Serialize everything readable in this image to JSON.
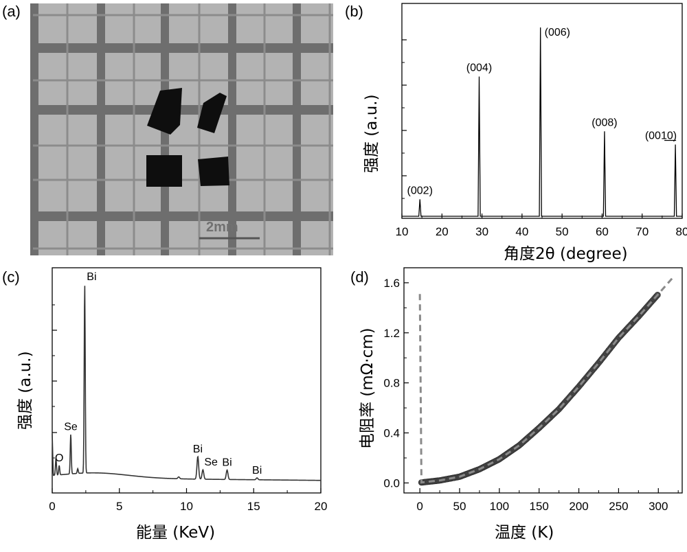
{
  "panel_labels": {
    "a": "(a)",
    "b": "(b)",
    "c": "(c)",
    "d": "(d)"
  },
  "photo": {
    "scale_bar_text": "2mm"
  },
  "colors": {
    "xrd_line": "#000000",
    "eds_line": "#333333",
    "resistivity_marker": "#4a4a4a",
    "fit_line": "#8a8a8a",
    "photo_background": "#b3b3b3",
    "grid_lines": "#6e6e6e",
    "crystal": "#0e0e0e"
  },
  "chart_data": [
    {
      "panel": "b",
      "type": "line",
      "xlabel": "角度2θ (degree)",
      "ylabel": "强度 (a.u.)",
      "xlim": [
        10,
        80
      ],
      "xticks": [
        "10",
        "20",
        "30",
        "40",
        "50",
        "60",
        "70",
        "80"
      ],
      "y_tick_labels_shown": false,
      "peaks": [
        {
          "label": "(002)",
          "x": 14.5,
          "rel_intensity": 0.09
        },
        {
          "label": "(004)",
          "x": 29.3,
          "rel_intensity": 0.74
        },
        {
          "label": "(006)",
          "x": 44.6,
          "rel_intensity": 1.0
        },
        {
          "label": "(008)",
          "x": 60.6,
          "rel_intensity": 0.45
        },
        {
          "label": "(0010)",
          "x": 78.3,
          "rel_intensity": 0.38
        }
      ]
    },
    {
      "panel": "c",
      "type": "line",
      "xlabel": "能量 (KeV)",
      "ylabel": "强度 (a.u.)",
      "xlim": [
        0,
        20
      ],
      "xticks": [
        "0",
        "5",
        "10",
        "15",
        "20"
      ],
      "y_tick_labels_shown": false,
      "annotations": [
        {
          "text": "O",
          "x": 0.52
        },
        {
          "text": "Se",
          "x": 1.38
        },
        {
          "text": "Bi",
          "x": 2.42
        },
        {
          "text": "Bi",
          "x": 10.84
        },
        {
          "text": "Se",
          "x": 11.22
        },
        {
          "text": "Bi",
          "x": 13.02
        },
        {
          "text": "Bi",
          "x": 15.25
        }
      ],
      "peaks": [
        {
          "x": 0.28,
          "rel_intensity": 0.09
        },
        {
          "x": 0.52,
          "rel_intensity": 0.05
        },
        {
          "x": 1.38,
          "rel_intensity": 0.21
        },
        {
          "x": 1.9,
          "rel_intensity": 0.025
        },
        {
          "x": 2.42,
          "rel_intensity": 1.0
        },
        {
          "x": 9.42,
          "rel_intensity": 0.01
        },
        {
          "x": 10.84,
          "rel_intensity": 0.12
        },
        {
          "x": 11.22,
          "rel_intensity": 0.05
        },
        {
          "x": 13.02,
          "rel_intensity": 0.05
        },
        {
          "x": 15.25,
          "rel_intensity": 0.01
        }
      ]
    },
    {
      "panel": "d",
      "type": "scatter",
      "xlabel": "温度 (K)",
      "ylabel": "电阻率 (mΩ·cm)",
      "xlim": [
        -20,
        330
      ],
      "ylim": [
        -0.08,
        1.72
      ],
      "xticks": [
        "0",
        "50",
        "100",
        "150",
        "200",
        "250",
        "300"
      ],
      "yticks": [
        "0.0",
        "0.4",
        "0.8",
        "1.2",
        "1.6"
      ],
      "series": [
        {
          "x": [
            2,
            25,
            50,
            75,
            100,
            125,
            150,
            175,
            200,
            225,
            250,
            275,
            300
          ],
          "y": [
            0.004,
            0.02,
            0.05,
            0.11,
            0.19,
            0.3,
            0.44,
            0.59,
            0.77,
            0.96,
            1.16,
            1.33,
            1.51
          ]
        }
      ],
      "fit": {
        "style": "dashed",
        "x_range": [
          0,
          318
        ]
      }
    }
  ]
}
